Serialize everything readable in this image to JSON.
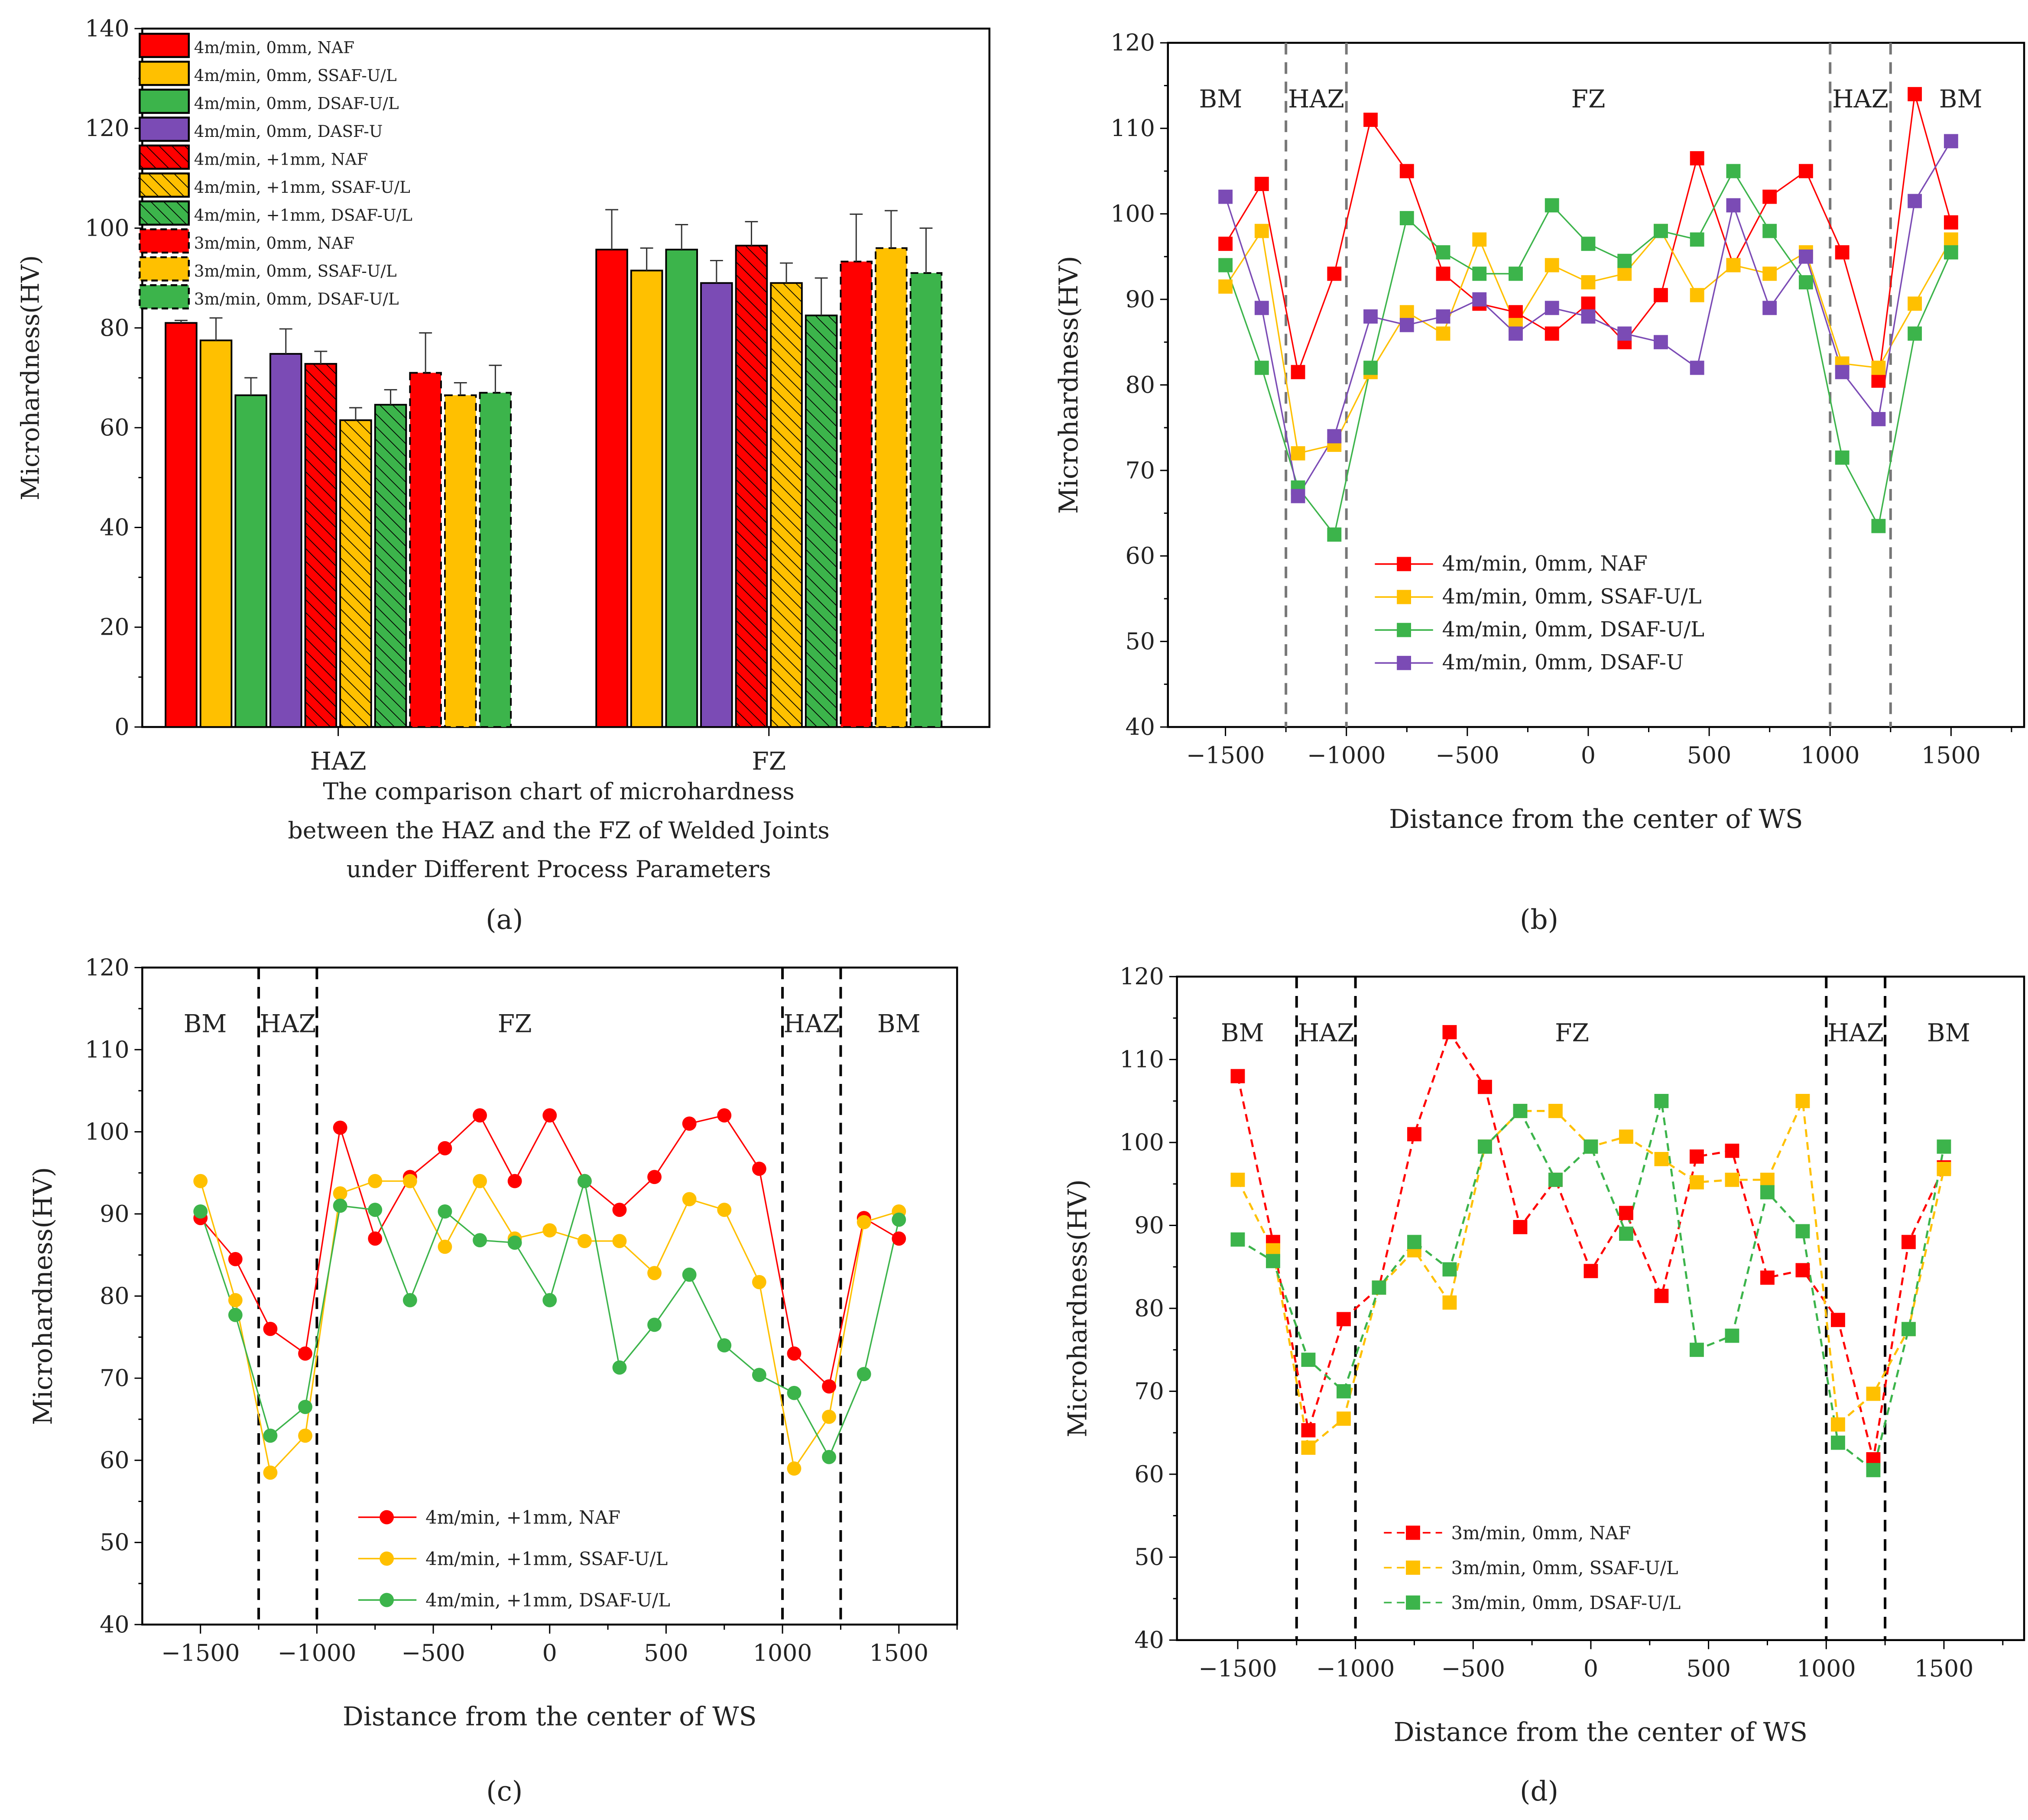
{
  "chart_data": [
    {
      "type": "bar",
      "panel_label": "(a)",
      "title_lines": [
        "The comparison chart of microhardness",
        "between the HAZ and the FZ of Welded Joints",
        "under Different Process Parameters"
      ],
      "ylabel": "Microhardness(HV)",
      "ylim": [
        0,
        140
      ],
      "yticks": [
        0,
        20,
        40,
        60,
        80,
        100,
        120,
        140
      ],
      "categories": [
        "HAZ",
        "FZ"
      ],
      "legend_position": "top-left",
      "series": [
        {
          "name": "4m/min, 0mm, NAF",
          "color": "#ff0000",
          "style": "solid",
          "values": [
            81,
            95.7
          ],
          "errors": [
            0.5,
            8
          ]
        },
        {
          "name": "4m/min, 0mm, SSAF-U/L",
          "color": "#ffc000",
          "style": "solid",
          "values": [
            77.5,
            91.5
          ],
          "errors": [
            4.5,
            4.5
          ]
        },
        {
          "name": "4m/min, 0mm, DSAF-U/L",
          "color": "#3cb44b",
          "style": "solid",
          "values": [
            66.5,
            95.7
          ],
          "errors": [
            3.5,
            5
          ]
        },
        {
          "name": "4m/min, 0mm, DASF-U",
          "color": "#7b4bb5",
          "style": "solid",
          "values": [
            74.8,
            89
          ],
          "errors": [
            5,
            4.5
          ]
        },
        {
          "name": "4m/min, +1mm, NAF",
          "color": "#ff0000",
          "style": "hatch",
          "values": [
            72.8,
            96.5
          ],
          "errors": [
            2.5,
            4.8
          ]
        },
        {
          "name": "4m/min, +1mm, SSAF-U/L",
          "color": "#ffc000",
          "style": "hatch",
          "values": [
            61.5,
            89
          ],
          "errors": [
            2.5,
            4
          ]
        },
        {
          "name": "4m/min, +1mm, DSAF-U/L",
          "color": "#3cb44b",
          "style": "hatch",
          "values": [
            64.6,
            82.5
          ],
          "errors": [
            3,
            7.5
          ]
        },
        {
          "name": "3m/min, 0mm, NAF",
          "color": "#ff0000",
          "style": "dashed",
          "values": [
            71,
            93.3
          ],
          "errors": [
            8,
            9.5
          ]
        },
        {
          "name": "3m/min, 0mm, SSAF-U/L",
          "color": "#ffc000",
          "style": "dashed",
          "values": [
            66.5,
            96
          ],
          "errors": [
            2.5,
            7.5
          ]
        },
        {
          "name": "3m/min, 0mm, DSAF-U/L",
          "color": "#3cb44b",
          "style": "dashed",
          "values": [
            67,
            91
          ],
          "errors": [
            5.5,
            9
          ]
        }
      ]
    },
    {
      "type": "line",
      "panel_label": "(b)",
      "xlabel": "Distance from the center of WS",
      "ylabel": "Microhardness(HV)",
      "ylim": [
        40,
        120
      ],
      "yticks": [
        40,
        50,
        60,
        70,
        80,
        90,
        100,
        110,
        120
      ],
      "xticks": [
        -1500,
        -1000,
        -500,
        0,
        500,
        1000,
        1500
      ],
      "xtick_labels": [
        "−1500",
        "−1000",
        "−500",
        "0",
        "500",
        "1000",
        "1500"
      ],
      "zone_boundaries": [
        -1250,
        -1000,
        1000,
        1250
      ],
      "zones": [
        {
          "label": "BM",
          "x": -1520
        },
        {
          "label": "HAZ",
          "x": -1125
        },
        {
          "label": "FZ",
          "x": 0
        },
        {
          "label": "HAZ",
          "x": 1125
        },
        {
          "label": "BM",
          "x": 1540
        }
      ],
      "marker": "square",
      "line_style": "solid",
      "legend_position": "bottom-center",
      "x": [
        -1500,
        -1350,
        -1200,
        -1050,
        -900,
        -750,
        -600,
        -450,
        -300,
        -150,
        0,
        150,
        300,
        450,
        600,
        750,
        900,
        1050,
        1200,
        1350,
        1500
      ],
      "series": [
        {
          "name": "4m/min, 0mm, NAF",
          "color": "#ff0000",
          "values": [
            96.5,
            103.5,
            81.5,
            93,
            111,
            105,
            93,
            89.5,
            88.5,
            86,
            89.5,
            85,
            90.5,
            106.5,
            94,
            102,
            105,
            95.5,
            80.5,
            114,
            99
          ]
        },
        {
          "name": "4m/min, 0mm, SSAF-U/L",
          "color": "#ffc000",
          "values": [
            91.5,
            98,
            72,
            73,
            81.5,
            88.5,
            86,
            97,
            87,
            94,
            92,
            93,
            98,
            90.5,
            94,
            93,
            95.5,
            82.5,
            82,
            89.5,
            97
          ]
        },
        {
          "name": "4m/min, 0mm, DSAF-U/L",
          "color": "#3cb44b",
          "values": [
            94,
            82,
            68,
            62.5,
            82,
            99.5,
            95.5,
            93,
            93,
            101,
            96.5,
            94.5,
            98,
            97,
            105,
            98,
            92,
            71.5,
            63.5,
            86,
            95.5
          ]
        },
        {
          "name": "4m/min, 0mm, DSAF-U",
          "color": "#7b4bb5",
          "values": [
            102,
            89,
            67,
            74,
            88,
            87,
            88,
            90,
            86,
            89,
            88,
            86,
            85,
            82,
            101,
            89,
            95,
            81.5,
            76,
            101.5,
            108.5
          ]
        }
      ]
    },
    {
      "type": "line",
      "panel_label": "(c)",
      "xlabel": "Distance from the center of WS",
      "ylabel": "Microhardness(HV)",
      "ylim": [
        40,
        120
      ],
      "yticks": [
        40,
        50,
        60,
        70,
        80,
        90,
        100,
        110,
        120
      ],
      "xticks": [
        -1500,
        -1000,
        -500,
        0,
        500,
        1000,
        1500
      ],
      "xtick_labels": [
        "−1500",
        "−1000",
        "−500",
        "0",
        "500",
        "1000",
        "1500"
      ],
      "zone_boundaries": [
        -1250,
        -1000,
        1000,
        1250
      ],
      "zones": [
        {
          "label": "BM",
          "x": -1480
        },
        {
          "label": "HAZ",
          "x": -1125
        },
        {
          "label": "FZ",
          "x": -150
        },
        {
          "label": "HAZ",
          "x": 1125
        },
        {
          "label": "BM",
          "x": 1500
        }
      ],
      "marker": "circle",
      "line_style": "solid",
      "legend_position": "bottom-left",
      "x": [
        -1500,
        -1350,
        -1200,
        -1050,
        -900,
        -750,
        -600,
        -450,
        -300,
        -150,
        0,
        150,
        300,
        450,
        600,
        750,
        900,
        1050,
        1200,
        1350,
        1500
      ],
      "series": [
        {
          "name": "4m/min, +1mm, NAF",
          "color": "#ff0000",
          "values": [
            89.5,
            84.5,
            76,
            73,
            100.5,
            87,
            94.5,
            98,
            102,
            94,
            102,
            94,
            90.5,
            94.5,
            101,
            102,
            95.5,
            73,
            69,
            89.5,
            87
          ]
        },
        {
          "name": "4m/min, +1mm, SSAF-U/L",
          "color": "#ffc000",
          "values": [
            94,
            79.5,
            58.5,
            63,
            92.5,
            94,
            94,
            86,
            94,
            87,
            88,
            86.7,
            86.7,
            82.8,
            91.8,
            90.5,
            81.7,
            59,
            65.3,
            89,
            90.3
          ]
        },
        {
          "name": "4m/min, +1mm, DSAF-U/L",
          "color": "#3cb44b",
          "values": [
            90.3,
            77.7,
            63,
            66.5,
            91,
            90.5,
            79.5,
            90.3,
            86.8,
            86.5,
            79.5,
            94,
            71.3,
            76.5,
            82.6,
            74,
            70.4,
            68.2,
            60.4,
            70.5,
            89.3
          ]
        }
      ]
    },
    {
      "type": "line",
      "panel_label": "(d)",
      "xlabel": "Distance from the center of WS",
      "ylabel": "Microhardness(HV)",
      "ylim": [
        40,
        120
      ],
      "yticks": [
        40,
        50,
        60,
        70,
        80,
        90,
        100,
        110,
        120
      ],
      "xticks": [
        -1500,
        -1000,
        -500,
        0,
        500,
        1000,
        1500
      ],
      "xtick_labels": [
        "−1500",
        "−1000",
        "−500",
        "0",
        "500",
        "1000",
        "1500"
      ],
      "zone_boundaries": [
        -1250,
        -1000,
        1000,
        1250
      ],
      "zones": [
        {
          "label": "BM",
          "x": -1480
        },
        {
          "label": "HAZ",
          "x": -1125
        },
        {
          "label": "FZ",
          "x": -80
        },
        {
          "label": "HAZ",
          "x": 1125
        },
        {
          "label": "BM",
          "x": 1520
        }
      ],
      "marker": "square",
      "line_style": "dashed",
      "legend_position": "bottom-left",
      "x": [
        -1500,
        -1350,
        -1200,
        -1050,
        -900,
        -750,
        -600,
        -450,
        -300,
        -150,
        0,
        150,
        300,
        450,
        600,
        750,
        900,
        1050,
        1200,
        1350,
        1500
      ],
      "series": [
        {
          "name": "3m/min, 0mm, NAF",
          "color": "#ff0000",
          "values": [
            108,
            88,
            65.3,
            78.7,
            82.5,
            101,
            113.3,
            106.7,
            89.8,
            95.5,
            84.5,
            91.5,
            81.5,
            98.3,
            99,
            83.7,
            84.6,
            78.6,
            61.8,
            88,
            97
          ]
        },
        {
          "name": "3m/min, 0mm, SSAF-U/L",
          "color": "#ffc000",
          "values": [
            95.5,
            87,
            63.2,
            66.7,
            82.5,
            87,
            80.7,
            99.5,
            103.8,
            103.8,
            99.5,
            100.7,
            98,
            95.2,
            95.5,
            95.5,
            105,
            66,
            69.7,
            77.5,
            96.8
          ]
        },
        {
          "name": "3m/min, 0mm, DSAF-U/L",
          "color": "#3cb44b",
          "values": [
            88.3,
            85.7,
            73.8,
            70,
            82.5,
            88,
            84.7,
            99.5,
            103.8,
            95.5,
            99.5,
            89,
            105,
            75,
            76.7,
            94,
            89.3,
            63.8,
            60.5,
            77.5,
            99.5
          ]
        }
      ]
    }
  ]
}
